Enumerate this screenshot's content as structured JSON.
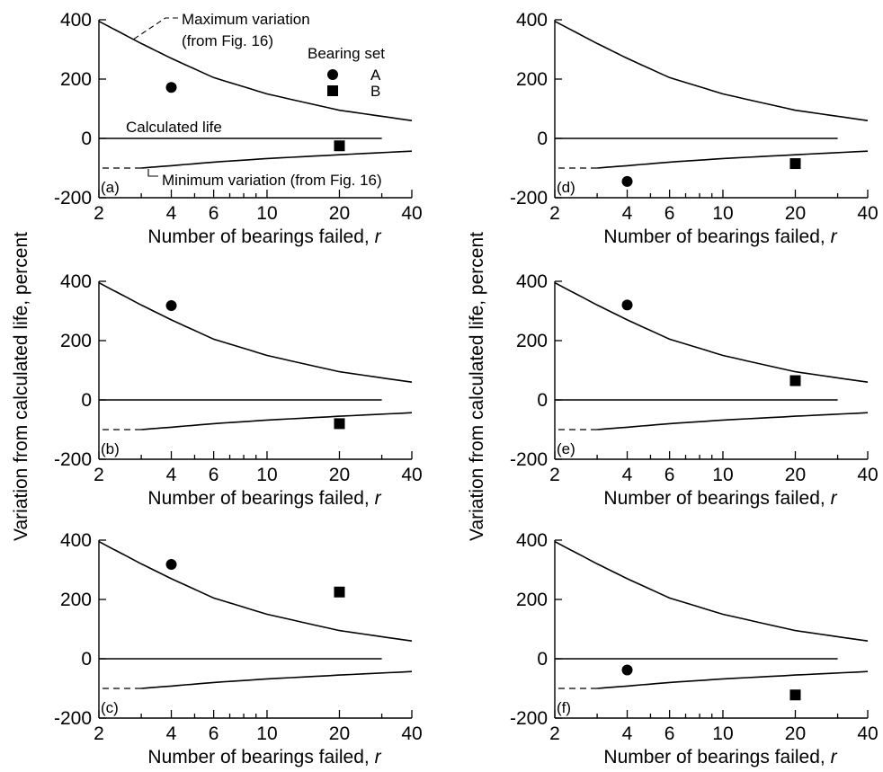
{
  "figure": {
    "ylabel": "Variation from calculated life, percent",
    "xlabel": "Number of bearings failed,",
    "xlabel_var": "r"
  },
  "annotations": {
    "max": "Maximum variation",
    "max2": "(from Fig. 16)",
    "calc": "Calculated life",
    "min": "Minimum variation (from Fig. 16)",
    "legend_title": "Bearing set",
    "legend_a": "A",
    "legend_b": "B"
  },
  "chart_data": [
    {
      "type": "scatter",
      "panel": "(a)",
      "xscale": "log",
      "xlim": [
        2,
        40
      ],
      "ylim": [
        -200,
        400
      ],
      "xticks": [
        2,
        4,
        6,
        10,
        20,
        40
      ],
      "yticks": [
        400,
        200,
        0,
        -200
      ],
      "series": [
        {
          "name": "A",
          "x": [
            4
          ],
          "y": [
            172
          ]
        },
        {
          "name": "B",
          "x": [
            20
          ],
          "y": [
            165
          ]
        },
        {
          "name": "B",
          "x": [
            20
          ],
          "y": [
            -25
          ]
        }
      ],
      "curves": [
        {
          "name": "Maximum variation",
          "x": [
            2,
            3,
            4,
            6,
            10,
            20,
            40
          ],
          "y": [
            395,
            320,
            270,
            205,
            150,
            95,
            60
          ]
        },
        {
          "name": "Calculated life",
          "x": [
            2,
            30
          ],
          "y": [
            0,
            0
          ]
        },
        {
          "name": "Minimum variation",
          "x": [
            3,
            4,
            6,
            10,
            20,
            40
          ],
          "y": [
            -100,
            -92,
            -80,
            -68,
            -55,
            -43
          ]
        }
      ],
      "legend": "top-right"
    },
    {
      "type": "scatter",
      "panel": "(b)",
      "xscale": "log",
      "xlim": [
        2,
        40
      ],
      "ylim": [
        -200,
        400
      ],
      "xticks": [
        2,
        4,
        6,
        10,
        20,
        40
      ],
      "yticks": [
        400,
        200,
        0,
        -200
      ],
      "series": [
        {
          "name": "A",
          "x": [
            4
          ],
          "y": [
            318
          ]
        },
        {
          "name": "B",
          "x": [
            20
          ],
          "y": [
            -80
          ]
        }
      ]
    },
    {
      "type": "scatter",
      "panel": "(c)",
      "xscale": "log",
      "xlim": [
        2,
        40
      ],
      "ylim": [
        -200,
        400
      ],
      "xticks": [
        2,
        4,
        6,
        10,
        20,
        40
      ],
      "yticks": [
        400,
        200,
        0,
        -200
      ],
      "series": [
        {
          "name": "A",
          "x": [
            4
          ],
          "y": [
            318
          ]
        },
        {
          "name": "B",
          "x": [
            20
          ],
          "y": [
            225
          ]
        }
      ]
    },
    {
      "type": "scatter",
      "panel": "(d)",
      "xscale": "log",
      "xlim": [
        2,
        40
      ],
      "ylim": [
        -200,
        400
      ],
      "xticks": [
        2,
        4,
        6,
        10,
        20,
        40
      ],
      "yticks": [
        400,
        200,
        0,
        -200
      ],
      "series": [
        {
          "name": "A",
          "x": [
            4
          ],
          "y": [
            -145
          ]
        },
        {
          "name": "B",
          "x": [
            20
          ],
          "y": [
            -85
          ]
        }
      ]
    },
    {
      "type": "scatter",
      "panel": "(e)",
      "xscale": "log",
      "xlim": [
        2,
        40
      ],
      "ylim": [
        -200,
        400
      ],
      "xticks": [
        2,
        4,
        6,
        10,
        20,
        40
      ],
      "yticks": [
        400,
        200,
        0,
        -200
      ],
      "series": [
        {
          "name": "A",
          "x": [
            4
          ],
          "y": [
            320
          ]
        },
        {
          "name": "B",
          "x": [
            20
          ],
          "y": [
            65
          ]
        }
      ]
    },
    {
      "type": "scatter",
      "panel": "(f)",
      "xscale": "log",
      "xlim": [
        2,
        40
      ],
      "ylim": [
        -200,
        400
      ],
      "xticks": [
        2,
        4,
        6,
        10,
        20,
        40
      ],
      "yticks": [
        400,
        200,
        0,
        -200
      ],
      "series": [
        {
          "name": "A",
          "x": [
            4
          ],
          "y": [
            -38
          ]
        },
        {
          "name": "B",
          "x": [
            20
          ],
          "y": [
            -122
          ]
        }
      ]
    }
  ]
}
